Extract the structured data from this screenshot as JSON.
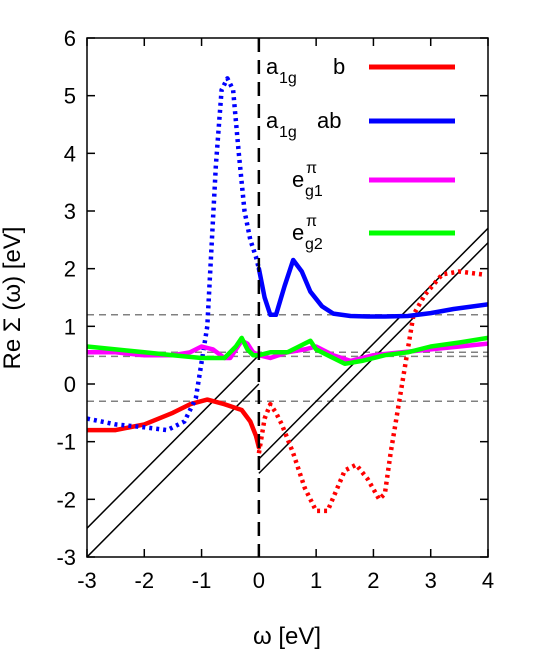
{
  "chart_data": {
    "type": "line",
    "title": "",
    "xlabel": "ω [eV]",
    "ylabel": "Re Σ (ω) [eV]",
    "xlim": [
      -3,
      4
    ],
    "ylim": [
      -3,
      6
    ],
    "xticks": [
      -3,
      -2,
      -1,
      0,
      1,
      2,
      3,
      4
    ],
    "yticks": [
      -3,
      -2,
      -1,
      0,
      1,
      2,
      3,
      4,
      5,
      6
    ],
    "grid": false,
    "legend_position": "top-right",
    "legend": [
      {
        "base": "a",
        "sub": "1g",
        "sup": "",
        "suffix": "b",
        "color": "#ff0000"
      },
      {
        "base": "a",
        "sub": "1g",
        "sup": "",
        "suffix": "ab",
        "color": "#0000ff"
      },
      {
        "base": "e",
        "sub": "g1",
        "sup": "π",
        "suffix": "",
        "color": "#ff00ff"
      },
      {
        "base": "e",
        "sub": "g2",
        "sup": "π",
        "suffix": "",
        "color": "#00ff00"
      }
    ],
    "series": [
      {
        "color": "#ff0000",
        "style": "solid",
        "x": [
          -3,
          -2.5,
          -2,
          -1.5,
          -1.2,
          -0.9,
          -0.6,
          -0.3,
          -0.15,
          -0.05,
          0
        ],
        "y": [
          -0.8,
          -0.8,
          -0.7,
          -0.5,
          -0.35,
          -0.27,
          -0.35,
          -0.45,
          -0.65,
          -0.9,
          -1.1
        ]
      },
      {
        "color": "#ff0000",
        "style": "dotted",
        "x": [
          0,
          0.1,
          0.2,
          0.3,
          0.4,
          0.6,
          0.8,
          1.0,
          1.2,
          1.5,
          1.7,
          1.9,
          2.1,
          2.2,
          2.3,
          2.5,
          2.7,
          2.9,
          3.2,
          3.5,
          3.9
        ],
        "y": [
          -1.2,
          -0.6,
          -0.35,
          -0.5,
          -0.7,
          -1.2,
          -1.8,
          -2.2,
          -2.2,
          -1.5,
          -1.4,
          -1.65,
          -2.0,
          -1.9,
          -1.2,
          0.0,
          1.2,
          1.55,
          1.9,
          1.95,
          1.9
        ]
      },
      {
        "color": "#0000ff",
        "style": "dotted",
        "x": [
          -3,
          -2.5,
          -2,
          -1.6,
          -1.3,
          -1.1,
          -0.9,
          -0.75,
          -0.65,
          -0.55,
          -0.45,
          -0.35,
          -0.25,
          -0.15,
          -0.05,
          0
        ],
        "y": [
          -0.6,
          -0.7,
          -0.75,
          -0.8,
          -0.65,
          -0.25,
          1.0,
          3.8,
          5.1,
          5.3,
          5.1,
          4.0,
          3.0,
          2.5,
          2.2,
          2.0
        ]
      },
      {
        "color": "#0000ff",
        "style": "solid",
        "x": [
          0,
          0.1,
          0.2,
          0.3,
          0.45,
          0.6,
          0.75,
          0.9,
          1.1,
          1.3,
          1.6,
          1.9,
          2.2,
          2.6,
          3.0,
          3.4,
          4.0
        ],
        "y": [
          2.0,
          1.5,
          1.2,
          1.2,
          1.7,
          2.15,
          1.95,
          1.6,
          1.35,
          1.22,
          1.18,
          1.17,
          1.17,
          1.18,
          1.23,
          1.3,
          1.38
        ]
      },
      {
        "color": "#ff00ff",
        "style": "solid",
        "x": [
          -3,
          -2.5,
          -2,
          -1.5,
          -1.2,
          -1.0,
          -0.8,
          -0.6,
          -0.5,
          -0.4,
          -0.3,
          -0.2,
          -0.1,
          0,
          0.2,
          0.5,
          0.8,
          1.0,
          1.3,
          1.6,
          2.0,
          2.5,
          3.0,
          3.5,
          4.0
        ],
        "y": [
          0.55,
          0.55,
          0.5,
          0.5,
          0.55,
          0.65,
          0.6,
          0.45,
          0.45,
          0.6,
          0.75,
          0.7,
          0.55,
          0.5,
          0.45,
          0.55,
          0.6,
          0.65,
          0.5,
          0.4,
          0.5,
          0.55,
          0.6,
          0.65,
          0.7
        ]
      },
      {
        "color": "#00ff00",
        "style": "solid",
        "x": [
          -3,
          -2.5,
          -2,
          -1.5,
          -1.0,
          -0.6,
          -0.4,
          -0.3,
          -0.2,
          -0.1,
          0,
          0.2,
          0.5,
          0.8,
          0.9,
          1.0,
          1.2,
          1.5,
          1.8,
          2.2,
          2.6,
          3.0,
          3.5,
          4.0
        ],
        "y": [
          0.65,
          0.6,
          0.55,
          0.5,
          0.45,
          0.45,
          0.65,
          0.8,
          0.6,
          0.5,
          0.5,
          0.55,
          0.55,
          0.7,
          0.75,
          0.6,
          0.5,
          0.35,
          0.4,
          0.5,
          0.55,
          0.65,
          0.72,
          0.8
        ]
      }
    ],
    "reference_lines": [
      {
        "kind": "diagonal",
        "x": [
          -3,
          0
        ],
        "y": [
          -2.5,
          0.5
        ]
      },
      {
        "kind": "diagonal",
        "x": [
          -3,
          0
        ],
        "y": [
          -3,
          0
        ]
      },
      {
        "kind": "diagonal",
        "x": [
          0,
          4
        ],
        "y": [
          -1.3,
          2.7
        ]
      },
      {
        "kind": "diagonal",
        "x": [
          0,
          4
        ],
        "y": [
          -1.55,
          2.45
        ]
      }
    ],
    "horizontal_dashed": [
      1.2,
      0.55,
      0.48,
      -0.3
    ],
    "vertical_dashed": [
      0
    ]
  }
}
